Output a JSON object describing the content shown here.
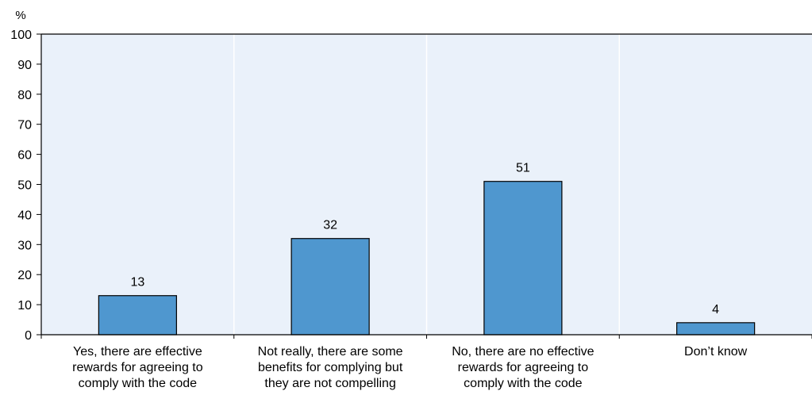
{
  "chart_data": {
    "type": "bar",
    "ylabel": "%",
    "ylim": [
      0,
      100
    ],
    "yticks": [
      0,
      10,
      20,
      30,
      40,
      50,
      60,
      70,
      80,
      90,
      100
    ],
    "categories": [
      [
        "Yes, there are effective",
        "rewards for agreeing to",
        "comply with the code"
      ],
      [
        "Not really, there are some",
        "benefits for complying but",
        "they are not compelling"
      ],
      [
        "No, there are no effective",
        "rewards for agreeing to",
        "comply with the code"
      ],
      [
        "Don’t know"
      ]
    ],
    "values": [
      13,
      32,
      51,
      4
    ],
    "data_labels": [
      "13",
      "32",
      "51",
      "4"
    ],
    "grid": "vertical separators",
    "colors": {
      "bar_fill": "#4f97cf",
      "bar_stroke": "#000000",
      "plot_bg": "#eaf1fa",
      "separator": "#ffffff",
      "axis": "#000000"
    }
  }
}
